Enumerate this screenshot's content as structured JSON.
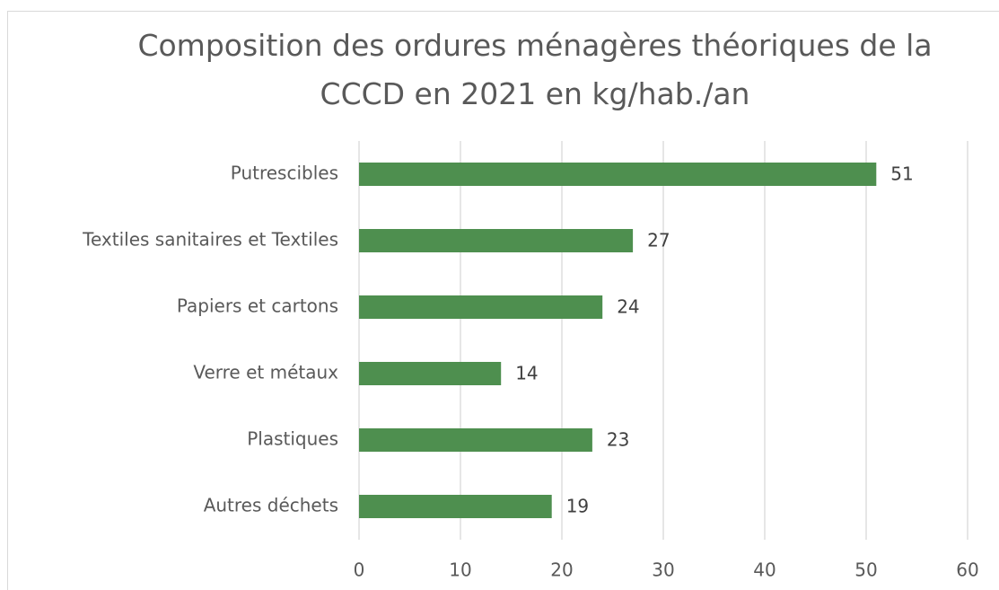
{
  "chart_data": {
    "type": "bar",
    "orientation": "horizontal",
    "title": "Composition des ordures ménagères théoriques de la CCCD en 2021 en kg/hab./an",
    "categories": [
      "Putrescibles",
      "Textiles sanitaires et Textiles",
      "Papiers et cartons",
      "Verre et métaux",
      "Plastiques",
      "Autres déchets"
    ],
    "values": [
      51,
      27,
      24,
      14,
      23,
      19
    ],
    "color": "#4e8f4f",
    "xlim": [
      0,
      60
    ],
    "xticks": [
      0,
      10,
      20,
      30,
      40,
      50,
      60
    ],
    "grid": true
  }
}
